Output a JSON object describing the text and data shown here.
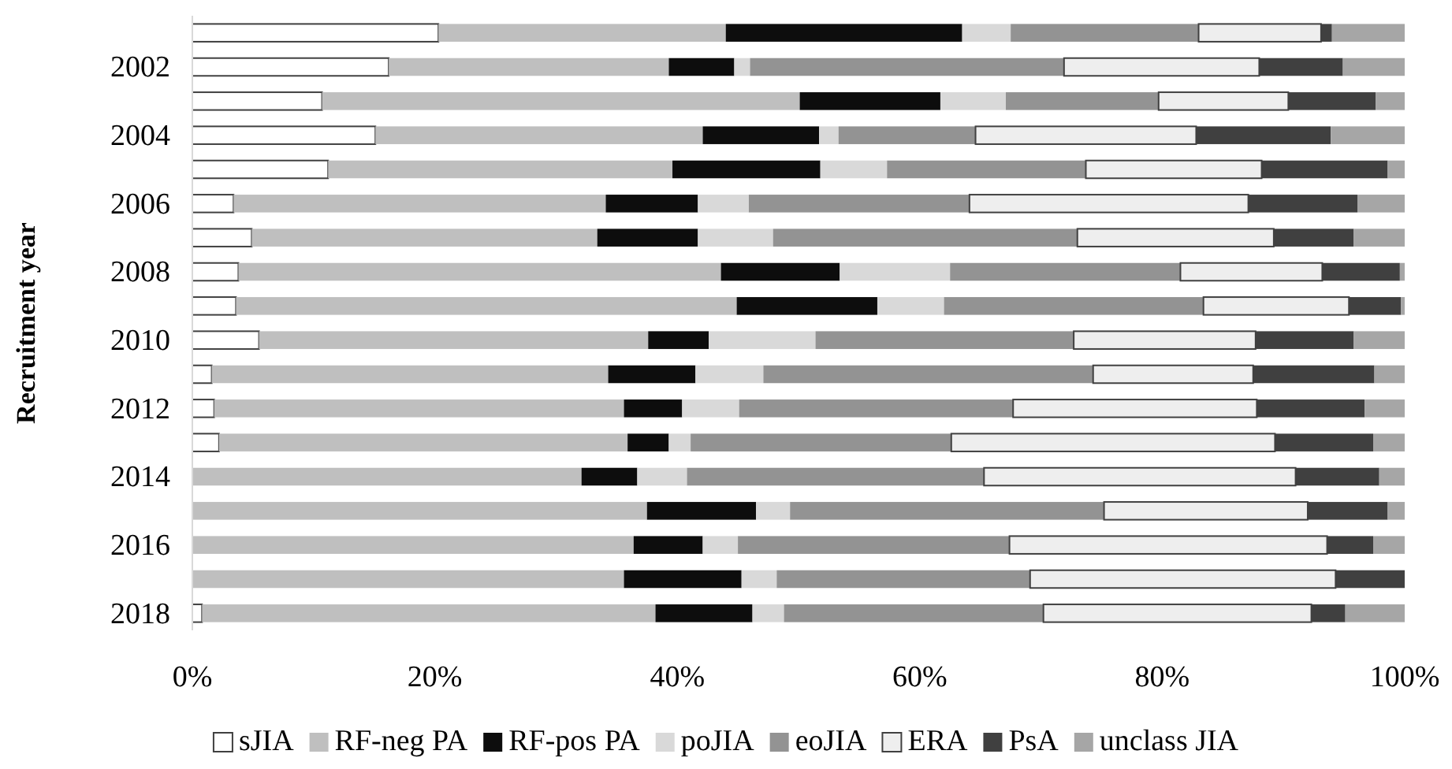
{
  "chart_data": {
    "type": "bar",
    "orientation": "horizontal",
    "stacked": true,
    "ylabel": "Recruitment year",
    "categories": [
      null,
      "2002",
      null,
      "2004",
      null,
      "2006",
      null,
      "2008",
      null,
      "2010",
      null,
      "2012",
      null,
      "2014",
      null,
      "2016",
      null,
      "2018"
    ],
    "xlim": [
      0,
      100
    ],
    "xticks": [
      {
        "value": 0,
        "label": "0%"
      },
      {
        "value": 20,
        "label": "20%"
      },
      {
        "value": 40,
        "label": "40%"
      },
      {
        "value": 60,
        "label": "60%"
      },
      {
        "value": 80,
        "label": "80%"
      },
      {
        "value": 100,
        "label": "100%"
      }
    ],
    "grid": false,
    "legend": "bottom",
    "series": [
      {
        "name": "sJIA",
        "color": "#ffffff",
        "values": [
          20.3,
          16.2,
          10.7,
          15.1,
          11.2,
          3.4,
          4.9,
          3.8,
          3.6,
          5.5,
          1.6,
          1.8,
          2.2,
          0,
          0,
          0,
          0,
          0.8
        ]
      },
      {
        "name": "RF-neg PA",
        "color": "#bfbfbf",
        "values": [
          23.7,
          23.1,
          39.4,
          27.0,
          28.4,
          30.7,
          28.5,
          39.8,
          41.3,
          32.1,
          32.7,
          33.8,
          33.7,
          32.1,
          37.5,
          36.4,
          35.6,
          37.4
        ]
      },
      {
        "name": "RF-pos PA",
        "color": "#0d0d0d",
        "values": [
          19.5,
          5.4,
          11.6,
          9.6,
          12.2,
          7.6,
          8.3,
          9.8,
          11.6,
          5.0,
          7.2,
          4.8,
          3.4,
          4.6,
          9.0,
          5.7,
          9.7,
          8.0
        ]
      },
      {
        "name": "poJIA",
        "color": "#d9d9d9",
        "values": [
          4.0,
          1.3,
          5.4,
          1.6,
          5.5,
          4.2,
          6.2,
          9.1,
          5.5,
          8.8,
          5.6,
          4.7,
          1.8,
          4.1,
          2.8,
          2.9,
          2.9,
          2.6
        ]
      },
      {
        "name": "eoJIA",
        "color": "#939393",
        "values": [
          15.5,
          25.9,
          12.6,
          11.3,
          16.4,
          18.2,
          25.1,
          19.0,
          21.4,
          21.3,
          27.2,
          22.6,
          21.5,
          24.5,
          25.9,
          22.4,
          20.9,
          21.4
        ]
      },
      {
        "name": "ERA",
        "color": "#eeeeee",
        "values": [
          10.1,
          16.1,
          10.7,
          18.2,
          14.5,
          23.0,
          16.2,
          11.7,
          12.0,
          15.0,
          13.2,
          20.1,
          26.7,
          25.7,
          16.8,
          26.2,
          25.2,
          22.1
        ]
      },
      {
        "name": "PsA",
        "color": "#404040",
        "values": [
          0.9,
          6.9,
          7.2,
          11.1,
          10.4,
          9.0,
          6.6,
          6.4,
          4.3,
          8.1,
          10.0,
          8.9,
          8.1,
          6.9,
          6.6,
          3.8,
          5.7,
          2.8
        ]
      },
      {
        "name": "unclass JIA",
        "color": "#a6a6a6",
        "values": [
          6.0,
          5.1,
          2.4,
          6.1,
          1.4,
          3.9,
          4.2,
          0.4,
          0.3,
          4.2,
          2.5,
          3.3,
          2.6,
          2.1,
          1.4,
          2.6,
          0,
          4.9
        ]
      }
    ]
  }
}
